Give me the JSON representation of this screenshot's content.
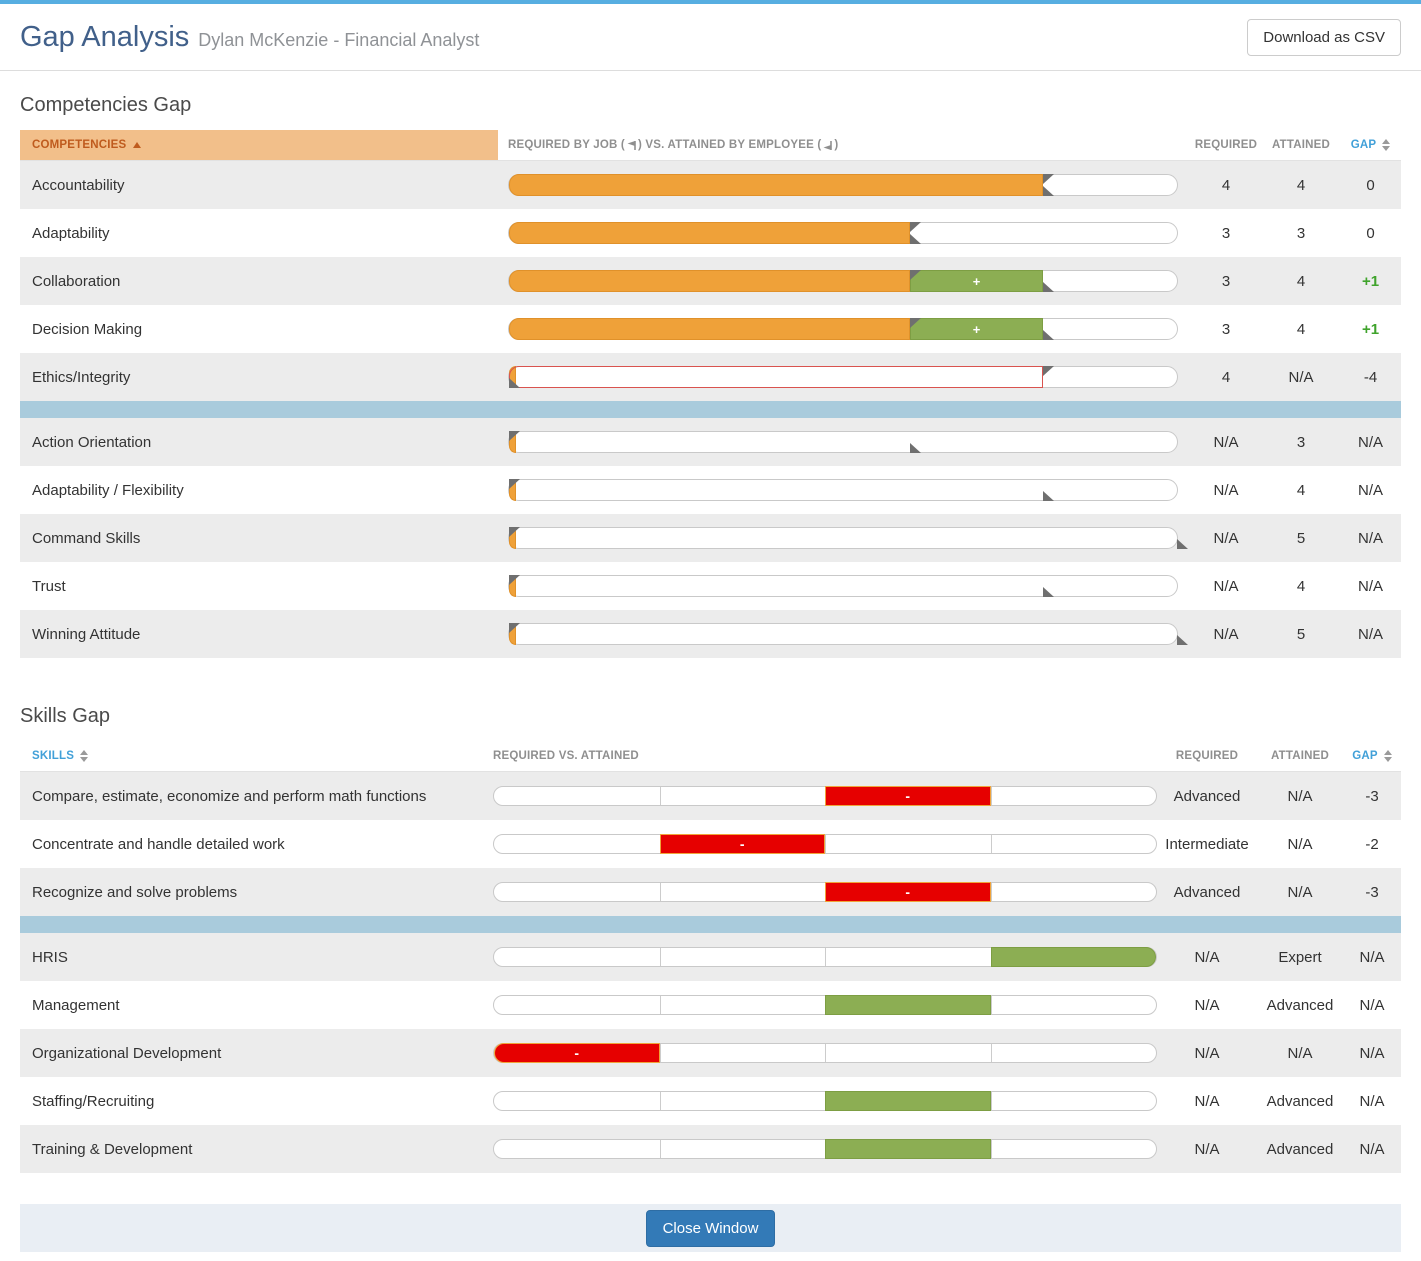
{
  "colors": {
    "topbar": "#57aee1",
    "head_orange": "#f2bf8a",
    "sep_blue": "#a9cbdc",
    "orange": "#efa139",
    "green": "#8cae53",
    "red": "#e60000",
    "btn_blue": "#337ab7",
    "gap_link_blue": "#41a0d8"
  },
  "header": {
    "title": "Gap Analysis",
    "subtitle": "Dylan McKenzie - Financial Analyst",
    "download_label": "Download as CSV"
  },
  "footer": {
    "close_label": "Close Window"
  },
  "competencies": {
    "section_title": "Competencies Gap",
    "scale_max": 5,
    "headers": {
      "name": "COMPETENCIES",
      "bars_prefix": "REQUIRED BY JOB (",
      "bars_mid": ") VS. ATTAINED BY EMPLOYEE (",
      "bars_suffix": ")",
      "required": "REQUIRED",
      "attained": "ATTAINED",
      "gap": "GAP"
    },
    "rows": [
      {
        "name": "Accountability",
        "required": "4",
        "attained": "4",
        "gap": "0",
        "required_value": 4,
        "attained_value": 4
      },
      {
        "name": "Adaptability",
        "required": "3",
        "attained": "3",
        "gap": "0",
        "required_value": 3,
        "attained_value": 3
      },
      {
        "name": "Collaboration",
        "required": "3",
        "attained": "4",
        "gap": "+1",
        "required_value": 3,
        "attained_value": 4
      },
      {
        "name": "Decision Making",
        "required": "3",
        "attained": "4",
        "gap": "+1",
        "required_value": 3,
        "attained_value": 4
      },
      {
        "name": "Ethics/Integrity",
        "required": "4",
        "attained": "N/A",
        "gap": "-4",
        "required_value": 4,
        "attained_value": null
      },
      {
        "separator": true
      },
      {
        "name": "Action Orientation",
        "required": "N/A",
        "attained": "3",
        "gap": "N/A",
        "required_value": null,
        "attained_value": 3
      },
      {
        "name": "Adaptability / Flexibility",
        "required": "N/A",
        "attained": "4",
        "gap": "N/A",
        "required_value": null,
        "attained_value": 4
      },
      {
        "name": "Command Skills",
        "required": "N/A",
        "attained": "5",
        "gap": "N/A",
        "required_value": null,
        "attained_value": 5
      },
      {
        "name": "Trust",
        "required": "N/A",
        "attained": "4",
        "gap": "N/A",
        "required_value": null,
        "attained_value": 4
      },
      {
        "name": "Winning Attitude",
        "required": "N/A",
        "attained": "5",
        "gap": "N/A",
        "required_value": null,
        "attained_value": 5
      }
    ]
  },
  "skills": {
    "section_title": "Skills Gap",
    "quarters": 4,
    "headers": {
      "name": "SKILLS",
      "bars": "REQUIRED VS. ATTAINED",
      "required": "REQUIRED",
      "attained": "ATTAINED",
      "gap": "GAP"
    },
    "rows": [
      {
        "name": "Compare, estimate, economize and perform math functions",
        "required": "Advanced",
        "attained": "N/A",
        "gap": "-3",
        "bar": {
          "type": "deficit",
          "quarter": 3,
          "label": "-"
        }
      },
      {
        "name": "Concentrate and handle detailed work",
        "required": "Intermediate",
        "attained": "N/A",
        "gap": "-2",
        "bar": {
          "type": "deficit",
          "quarter": 2,
          "label": "-"
        }
      },
      {
        "name": "Recognize and solve problems",
        "required": "Advanced",
        "attained": "N/A",
        "gap": "-3",
        "bar": {
          "type": "deficit",
          "quarter": 3,
          "label": "-"
        }
      },
      {
        "separator": true
      },
      {
        "name": "HRIS",
        "required": "N/A",
        "attained": "Expert",
        "gap": "N/A",
        "bar": {
          "type": "surplus",
          "quarter": 4,
          "label": ""
        }
      },
      {
        "name": "Management",
        "required": "N/A",
        "attained": "Advanced",
        "gap": "N/A",
        "bar": {
          "type": "surplus",
          "quarter": 3,
          "label": ""
        }
      },
      {
        "name": "Organizational Development",
        "required": "N/A",
        "attained": "N/A",
        "gap": "N/A",
        "bar": {
          "type": "deficit",
          "quarter": 1,
          "label": "-"
        }
      },
      {
        "name": "Staffing/Recruiting",
        "required": "N/A",
        "attained": "Advanced",
        "gap": "N/A",
        "bar": {
          "type": "surplus",
          "quarter": 3,
          "label": ""
        }
      },
      {
        "name": "Training & Development",
        "required": "N/A",
        "attained": "Advanced",
        "gap": "N/A",
        "bar": {
          "type": "surplus",
          "quarter": 3,
          "label": ""
        }
      }
    ]
  }
}
